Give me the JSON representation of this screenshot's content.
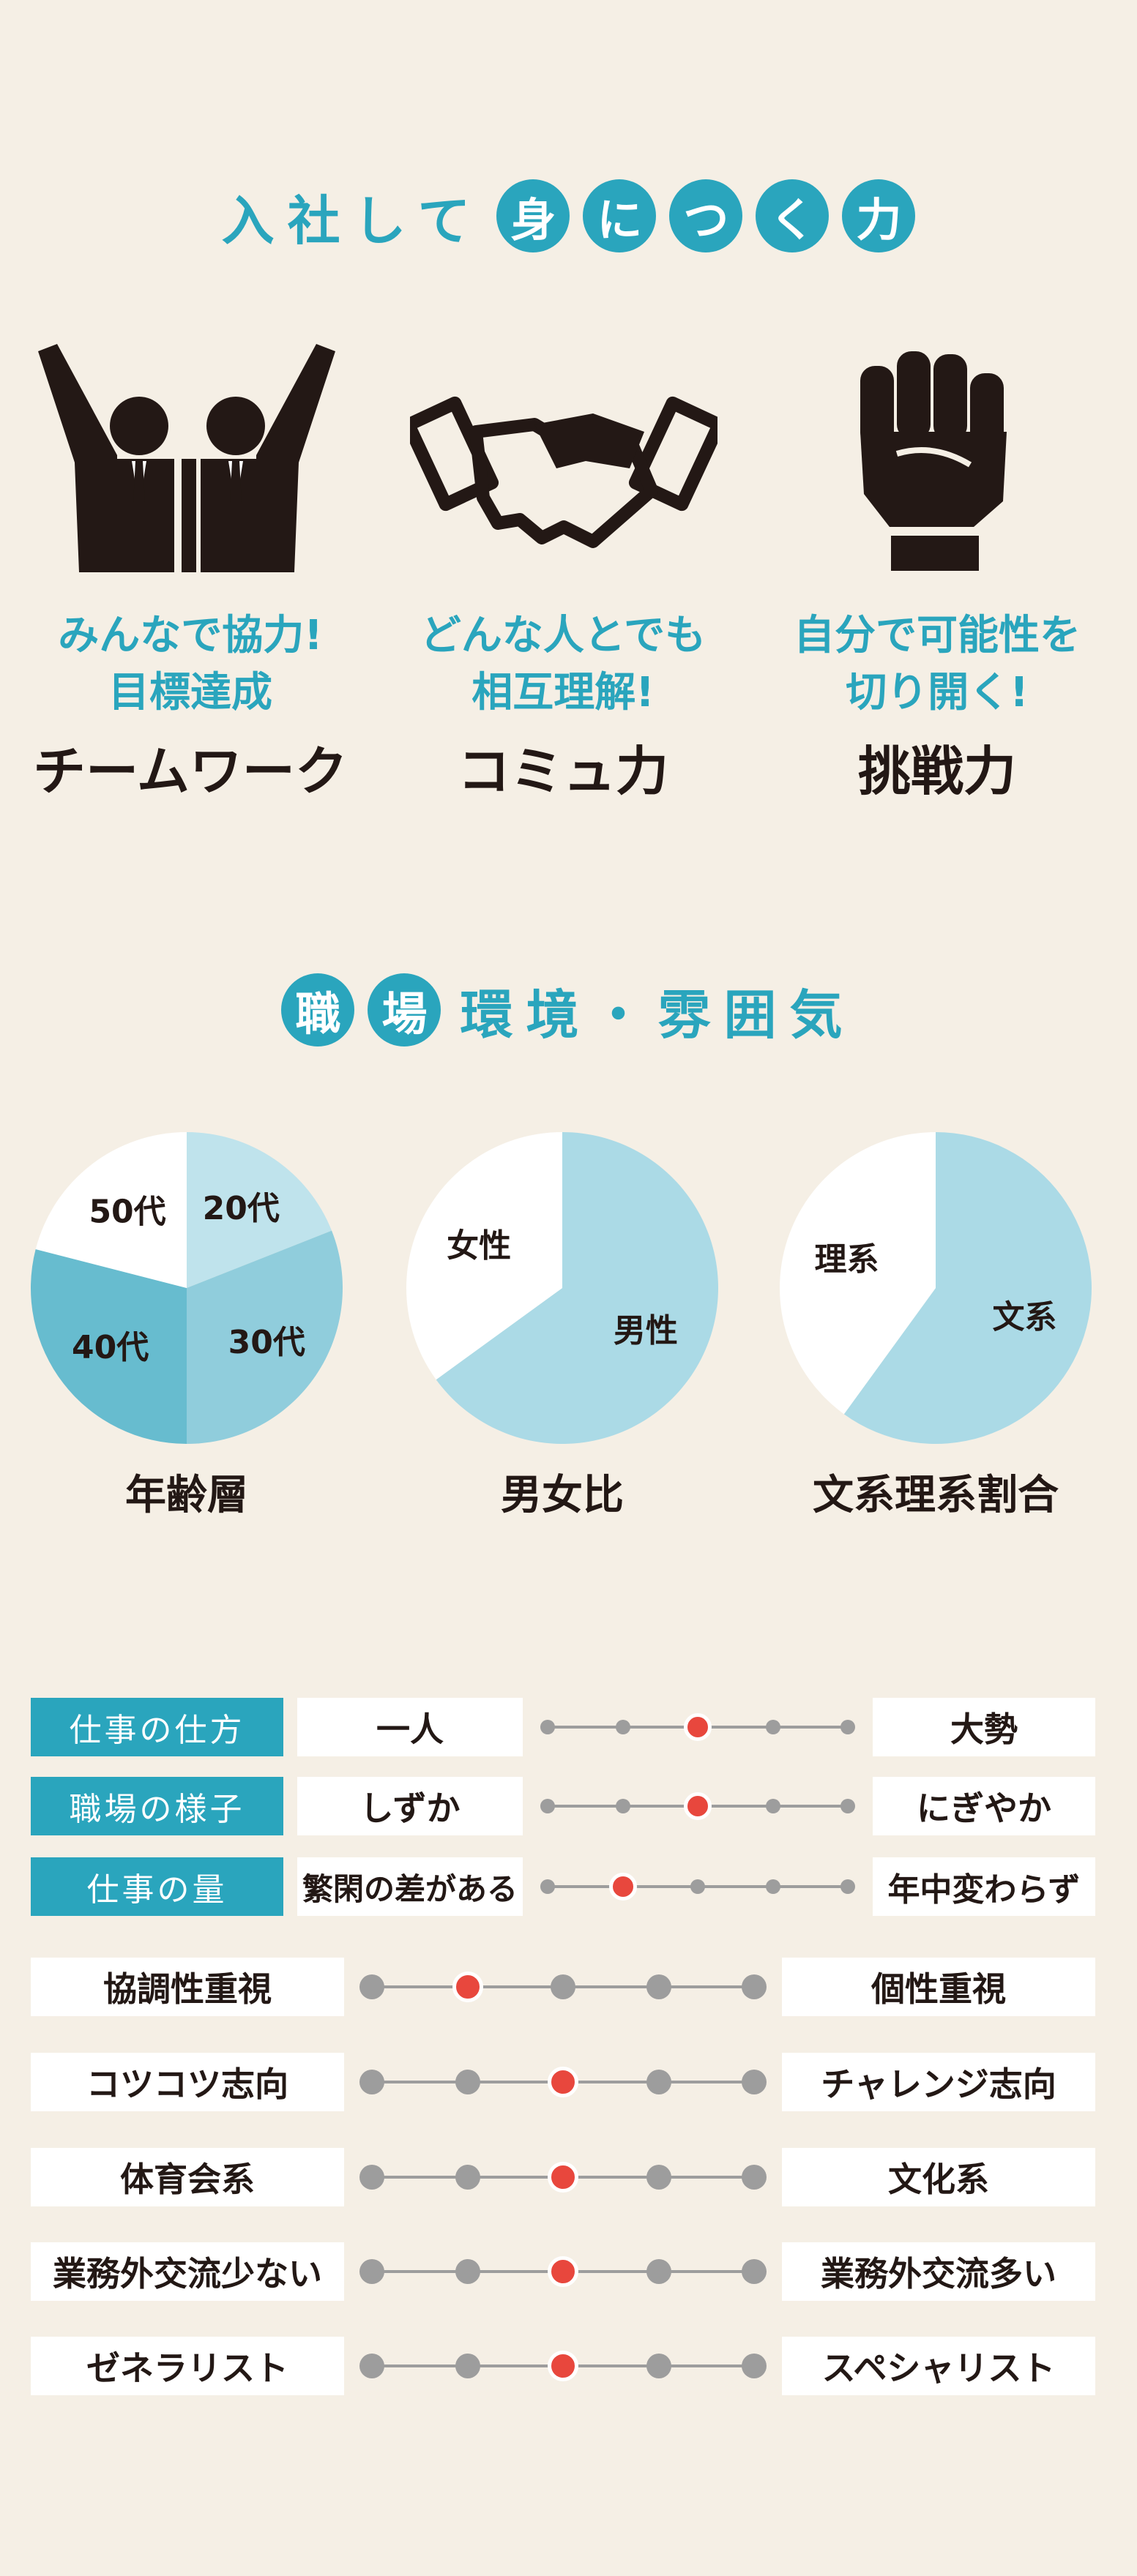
{
  "section1": {
    "title_plain": "入社して",
    "title_circles": [
      "身",
      "に",
      "つ",
      "く",
      "力"
    ],
    "skills": [
      {
        "desc1": "みんなで協力!",
        "desc2": "目標達成",
        "name": "チームワーク",
        "icon": "celebrating-people-icon"
      },
      {
        "desc1": "どんな人とでも",
        "desc2": "相互理解!",
        "name": "コミュ力",
        "icon": "handshake-icon"
      },
      {
        "desc1": "自分で可能性を",
        "desc2": "切り開く!",
        "name": "挑戦力",
        "icon": "raised-fist-icon"
      }
    ]
  },
  "section2": {
    "title_circles": [
      "職",
      "場"
    ],
    "title_plain": "環境・雰囲気"
  },
  "chart_data": [
    {
      "type": "pie",
      "title": "年齢層",
      "slices": [
        {
          "label": "20代",
          "value": 19,
          "color": "#bfe3ec"
        },
        {
          "label": "30代",
          "value": 31,
          "color": "#90cddc"
        },
        {
          "label": "40代",
          "value": 29,
          "color": "#67bccf"
        },
        {
          "label": "50代",
          "value": 21,
          "color": "#ffffff"
        }
      ]
    },
    {
      "type": "pie",
      "title": "男女比",
      "slices": [
        {
          "label": "男性",
          "value": 65,
          "color": "#abdae6"
        },
        {
          "label": "女性",
          "value": 35,
          "color": "#ffffff"
        }
      ]
    },
    {
      "type": "pie",
      "title": "文系理系割合",
      "slices": [
        {
          "label": "文系",
          "value": 60,
          "color": "#abdae6"
        },
        {
          "label": "理系",
          "value": 40,
          "color": "#ffffff"
        }
      ]
    }
  ],
  "scales_small": [
    {
      "topic": "仕事の仕方",
      "left": "一人",
      "right": "大勢",
      "steps": 5,
      "selected": 3
    },
    {
      "topic": "職場の様子",
      "left": "しずか",
      "right": "にぎやか",
      "steps": 5,
      "selected": 3
    },
    {
      "topic": "仕事の量",
      "left": "繁閑の差がある",
      "right": "年中変わらず",
      "steps": 5,
      "selected": 2
    }
  ],
  "scales_large": [
    {
      "left": "協調性重視",
      "right": "個性重視",
      "steps": 5,
      "selected": 2
    },
    {
      "left": "コツコツ志向",
      "right": "チャレンジ志向",
      "steps": 5,
      "selected": 3
    },
    {
      "left": "体育会系",
      "right": "文化系",
      "steps": 5,
      "selected": 3
    },
    {
      "left": "業務外交流少ない",
      "right": "業務外交流多い",
      "steps": 5,
      "selected": 3
    },
    {
      "left": "ゼネラリスト",
      "right": "スペシャリスト",
      "steps": 5,
      "selected": 3
    }
  ],
  "colors": {
    "accent": "#2aa5bd",
    "selected_dot": "#e8473d",
    "dot": "#9d9d9d",
    "background": "#f5efe5"
  }
}
